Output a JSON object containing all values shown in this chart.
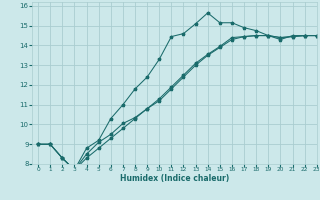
{
  "xlabel": "Humidex (Indice chaleur)",
  "bg_color": "#cce8ea",
  "grid_color": "#aacdd0",
  "line_color": "#1a6b6b",
  "xlim": [
    -0.5,
    23
  ],
  "ylim": [
    8,
    16.2
  ],
  "xticks": [
    0,
    1,
    2,
    3,
    4,
    5,
    6,
    7,
    8,
    9,
    10,
    11,
    12,
    13,
    14,
    15,
    16,
    17,
    18,
    19,
    20,
    21,
    22,
    23
  ],
  "yticks": [
    8,
    9,
    10,
    11,
    12,
    13,
    14,
    15,
    16
  ],
  "line1_x": [
    0,
    1,
    2,
    3,
    4,
    5,
    6,
    7,
    8,
    9,
    10,
    11,
    12,
    13,
    14,
    15,
    16,
    17,
    18,
    19,
    20,
    21,
    22,
    23
  ],
  "line1_y": [
    9.0,
    9.0,
    8.3,
    7.7,
    8.8,
    9.2,
    10.3,
    11.0,
    11.8,
    12.4,
    13.3,
    14.45,
    14.6,
    15.1,
    15.65,
    15.15,
    15.15,
    14.9,
    14.75,
    14.5,
    14.3,
    14.5,
    14.5,
    14.5
  ],
  "line2_x": [
    0,
    1,
    2,
    3,
    4,
    5,
    6,
    7,
    8,
    9,
    10,
    11,
    12,
    13,
    14,
    15,
    16,
    17,
    18,
    19,
    20,
    21,
    22,
    23
  ],
  "line2_y": [
    9.0,
    9.0,
    8.3,
    7.7,
    8.5,
    9.1,
    9.5,
    10.05,
    10.35,
    10.8,
    11.2,
    11.8,
    12.4,
    13.0,
    13.5,
    13.9,
    14.3,
    14.45,
    14.5,
    14.5,
    14.4,
    14.45,
    14.5,
    14.5
  ],
  "line3_x": [
    0,
    1,
    2,
    3,
    4,
    5,
    6,
    7,
    8,
    9,
    10,
    11,
    12,
    13,
    14,
    15,
    16,
    17,
    18,
    19,
    20,
    21,
    22,
    23
  ],
  "line3_y": [
    9.0,
    9.0,
    8.3,
    7.7,
    8.3,
    8.8,
    9.3,
    9.8,
    10.3,
    10.8,
    11.3,
    11.9,
    12.5,
    13.1,
    13.55,
    13.95,
    14.4,
    14.45,
    14.5,
    14.5,
    14.4,
    14.45,
    14.5,
    14.5
  ]
}
